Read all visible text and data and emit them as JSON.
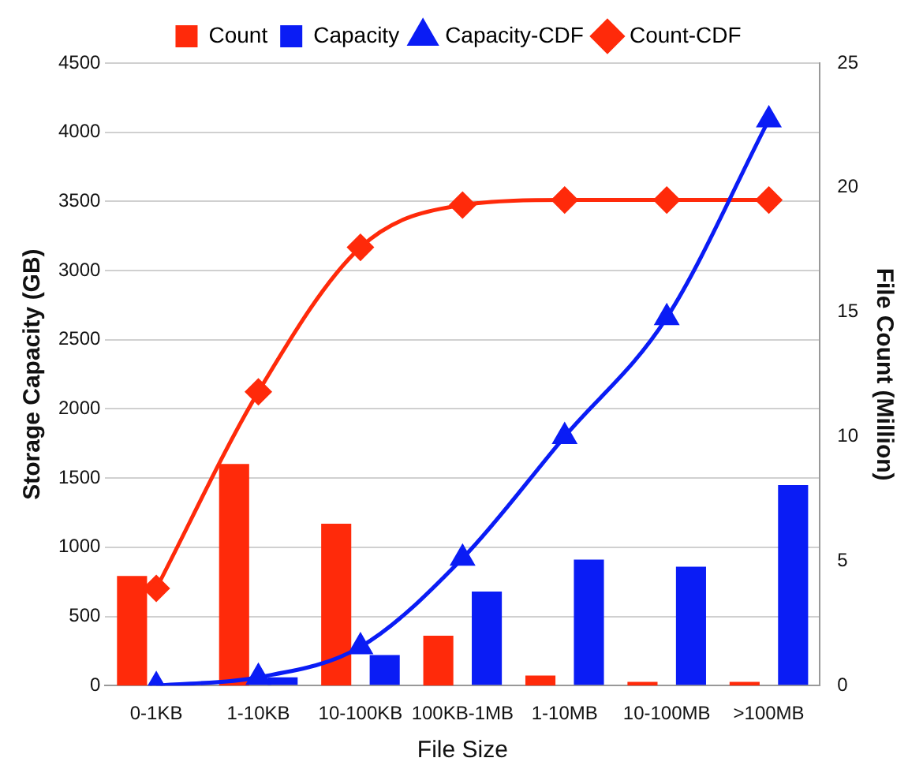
{
  "chart_data": {
    "type": "bar",
    "xlabel": "File Size",
    "ylabel": "Storage Capacity (GB)",
    "y2label": "File Count (Million)",
    "categories": [
      "0-1KB",
      "1-10KB",
      "10-100KB",
      "100KB-1MB",
      "1-10MB",
      "10-100MB",
      ">100MB"
    ],
    "series": [
      {
        "name": "Count",
        "axis": "y2",
        "color": "#ff2a0a",
        "values": [
          4.4,
          8.9,
          6.5,
          2.0,
          0.4,
          0.15,
          0.15
        ]
      },
      {
        "name": "Capacity",
        "color": "#0a1cf5",
        "values": [
          0,
          60,
          220,
          680,
          910,
          860,
          1450
        ]
      },
      {
        "name": "Capacity-CDF",
        "type": "line",
        "marker": "triangle",
        "color": "#0a1cf5",
        "values": [
          0,
          60,
          280,
          920,
          1800,
          2660,
          4090
        ]
      },
      {
        "name": "Count-CDF",
        "type": "line",
        "marker": "diamond",
        "axis": "y2",
        "color": "#ff2a0a",
        "values": [
          3.9,
          11.8,
          17.6,
          19.3,
          19.5,
          19.5,
          19.5
        ]
      }
    ],
    "ylim": [
      0,
      4500
    ],
    "yticks": [
      0,
      500,
      1000,
      1500,
      2000,
      2500,
      3000,
      3500,
      4000,
      4500
    ],
    "y2lim": [
      0,
      25
    ],
    "y2ticks": [
      0,
      5,
      10,
      15,
      20,
      25
    ],
    "grid": "y",
    "legend": "top"
  }
}
